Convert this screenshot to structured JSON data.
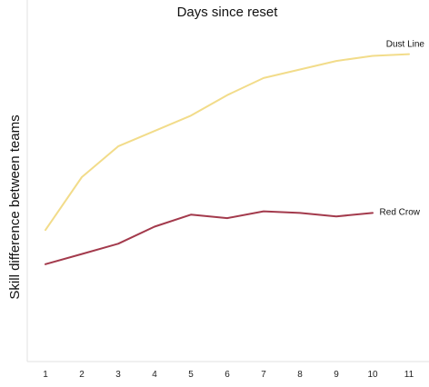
{
  "chart_data": {
    "type": "line",
    "title": "Days since reset",
    "xlabel": "",
    "ylabel": "Skill difference between teams",
    "x": [
      1,
      2,
      3,
      4,
      5,
      6,
      7,
      8,
      9,
      10,
      11
    ],
    "xlim": [
      0.5,
      11.5
    ],
    "ylim": [
      0,
      100
    ],
    "grid": false,
    "legend": "inline-labels-at-line-ends",
    "series": [
      {
        "name": "Dust Line",
        "color": "#f2dc8a",
        "values": [
          38.5,
          54,
          63,
          67.5,
          72,
          78,
          83,
          85.5,
          88,
          89.5,
          90
        ]
      },
      {
        "name": "Red Crow",
        "color": "#a33a4c",
        "values": [
          28.5,
          31.5,
          34.5,
          39.5,
          43,
          42,
          44,
          43.5,
          42.5,
          43.5,
          null
        ]
      }
    ]
  }
}
